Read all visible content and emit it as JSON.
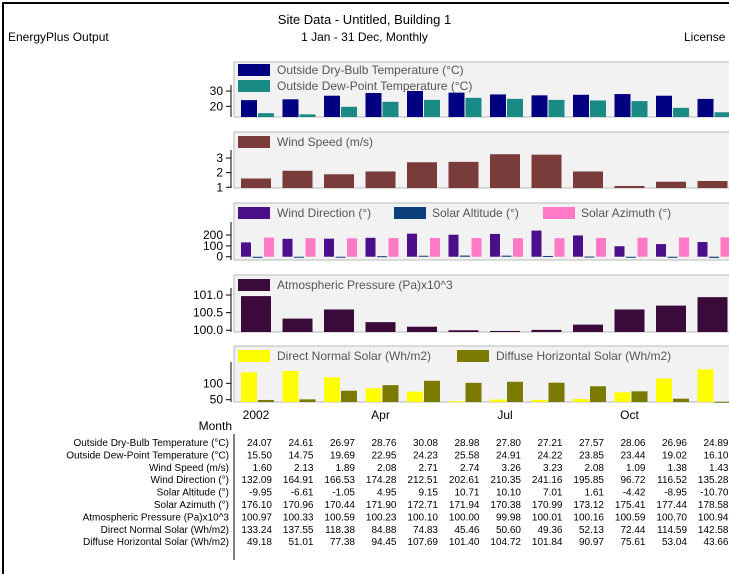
{
  "header": {
    "title": "Site Data - Untitled, Building 1",
    "subtitle": "1 Jan - 31 Dec, Monthly",
    "app": "EnergyPlus Output",
    "license": "License"
  },
  "month_axis": {
    "title": "Month",
    "labels": [
      "2002",
      "",
      "",
      "Apr",
      "",
      "",
      "Jul",
      "",
      "",
      "Oct",
      "",
      ""
    ]
  },
  "chart_data": [
    {
      "type": "bar",
      "series": [
        {
          "name": "Outside Dry-Bulb Temperature (°C)",
          "color": "#000080",
          "values": [
            24.07,
            24.61,
            26.97,
            28.76,
            30.08,
            28.98,
            27.8,
            27.21,
            27.57,
            28.06,
            26.96,
            24.89
          ]
        },
        {
          "name": "Outside Dew-Point Temperature (°C)",
          "color": "#1a8a85",
          "values": [
            15.5,
            14.75,
            19.69,
            22.95,
            24.23,
            25.58,
            24.91,
            24.22,
            23.85,
            23.44,
            19.02,
            16.1
          ]
        }
      ],
      "ylim": [
        13,
        34
      ],
      "yticks": [
        {
          "value": 20,
          "label": "20"
        },
        {
          "value": 30,
          "label": "30"
        }
      ]
    },
    {
      "type": "bar",
      "series": [
        {
          "name": "Wind Speed (m/s)",
          "color": "#7a3b3b",
          "values": [
            1.6,
            2.13,
            1.89,
            2.08,
            2.71,
            2.74,
            3.26,
            3.23,
            2.08,
            1.09,
            1.38,
            1.43
          ]
        }
      ],
      "ylim": [
        0.95,
        3.55
      ],
      "yticks": [
        {
          "value": 1,
          "label": "1"
        },
        {
          "value": 2,
          "label": "2"
        },
        {
          "value": 3,
          "label": "3"
        }
      ]
    },
    {
      "type": "bar",
      "series": [
        {
          "name": "Wind Direction (°)",
          "color": "#4b0f8a",
          "values": [
            132.09,
            164.91,
            166.53,
            174.28,
            212.51,
            202.61,
            210.35,
            241.16,
            195.85,
            96.72,
            116.52,
            135.28
          ]
        },
        {
          "name": "Solar Altitude (°)",
          "color": "#0a3f7a",
          "values": [
            -9.95,
            -6.61,
            -1.05,
            4.95,
            9.15,
            10.71,
            10.1,
            7.01,
            1.61,
            -4.42,
            -8.95,
            -10.7
          ]
        },
        {
          "name": "Solar Azimuth (°)",
          "color": "#ff79c6",
          "values": [
            176.1,
            170.96,
            170.44,
            171.9,
            172.71,
            171.94,
            170.38,
            170.99,
            173.12,
            175.41,
            177.44,
            178.58
          ]
        }
      ],
      "ylim": [
        -30,
        320
      ],
      "yticks": [
        {
          "value": 0,
          "label": "0"
        },
        {
          "value": 100,
          "label": "100"
        },
        {
          "value": 200,
          "label": "200"
        }
      ]
    },
    {
      "type": "bar",
      "series": [
        {
          "name": "Atmospheric Pressure (Pa)x10^3",
          "color": "#3a0a3a",
          "values": [
            100.97,
            100.33,
            100.59,
            100.23,
            100.1,
            100.0,
            99.98,
            100.01,
            100.16,
            100.59,
            100.7,
            100.94
          ]
        }
      ],
      "ylim": [
        99.95,
        101.2
      ],
      "yticks": [
        {
          "value": 100.0,
          "label": "100.0"
        },
        {
          "value": 100.5,
          "label": "100.5"
        },
        {
          "value": 101.0,
          "label": "101.0"
        }
      ]
    },
    {
      "type": "bar",
      "series": [
        {
          "name": "Direct Normal Solar (Wh/m2)",
          "color": "#ffff00",
          "values": [
            133.24,
            137.55,
            118.38,
            84.88,
            74.83,
            45.46,
            50.6,
            49.36,
            52.13,
            72.44,
            114.59,
            142.58
          ]
        },
        {
          "name": "Diffuse Horizontal Solar (Wh/m2)",
          "color": "#7a7a00",
          "values": [
            49.18,
            51.01,
            77.38,
            94.45,
            107.69,
            101.4,
            104.72,
            101.84,
            90.97,
            75.61,
            53.04,
            43.66
          ]
        }
      ],
      "ylim": [
        43,
        165
      ],
      "yticks": [
        {
          "value": 50,
          "label": "50"
        },
        {
          "value": 100,
          "label": "100"
        }
      ]
    }
  ],
  "table": {
    "rows": [
      {
        "label": "Outside Dry-Bulb Temperature (°C)",
        "values": [
          "24.07",
          "24.61",
          "26.97",
          "28.76",
          "30.08",
          "28.98",
          "27.80",
          "27.21",
          "27.57",
          "28.06",
          "26.96",
          "24.89"
        ]
      },
      {
        "label": "Outside Dew-Point Temperature (°C)",
        "values": [
          "15.50",
          "14.75",
          "19.69",
          "22.95",
          "24.23",
          "25.58",
          "24.91",
          "24.22",
          "23.85",
          "23.44",
          "19.02",
          "16.10"
        ]
      },
      {
        "label": "Wind Speed (m/s)",
        "values": [
          "1.60",
          "2.13",
          "1.89",
          "2.08",
          "2.71",
          "2.74",
          "3.26",
          "3.23",
          "2.08",
          "1.09",
          "1.38",
          "1.43"
        ]
      },
      {
        "label": "Wind Direction (°)",
        "values": [
          "132.09",
          "164.91",
          "166.53",
          "174.28",
          "212.51",
          "202.61",
          "210.35",
          "241.16",
          "195.85",
          "96.72",
          "116.52",
          "135.28"
        ]
      },
      {
        "label": "Solar Altitude (°)",
        "values": [
          "-9.95",
          "-6.61",
          "-1.05",
          "4.95",
          "9.15",
          "10.71",
          "10.10",
          "7.01",
          "1.61",
          "-4.42",
          "-8.95",
          "-10.70"
        ]
      },
      {
        "label": "Solar Azimuth (°)",
        "values": [
          "176.10",
          "170.96",
          "170.44",
          "171.90",
          "172.71",
          "171.94",
          "170.38",
          "170.99",
          "173.12",
          "175.41",
          "177.44",
          "178.58"
        ]
      },
      {
        "label": "Atmospheric Pressure (Pa)x10^3",
        "values": [
          "100.97",
          "100.33",
          "100.59",
          "100.23",
          "100.10",
          "100.00",
          "99.98",
          "100.01",
          "100.16",
          "100.59",
          "100.70",
          "100.94"
        ]
      },
      {
        "label": "Direct Normal Solar (Wh/m2)",
        "values": [
          "133.24",
          "137.55",
          "118.38",
          "84.88",
          "74.83",
          "45.46",
          "50.60",
          "49.36",
          "52.13",
          "72.44",
          "114.59",
          "142.58"
        ]
      },
      {
        "label": "Diffuse Horizontal Solar (Wh/m2)",
        "values": [
          "49.18",
          "51.01",
          "77.38",
          "94.45",
          "107.69",
          "101.40",
          "104.72",
          "101.84",
          "90.97",
          "75.61",
          "53.04",
          "43.66"
        ]
      }
    ]
  }
}
